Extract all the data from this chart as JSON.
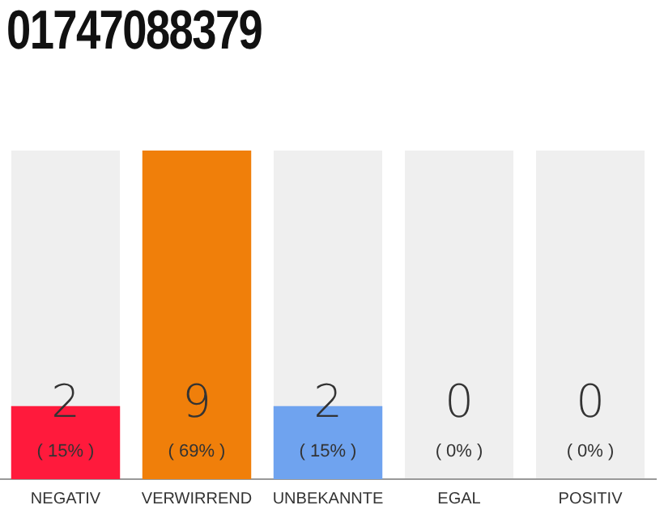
{
  "chart_data": {
    "type": "bar",
    "title": "01747088379",
    "categories": [
      "NEGATIV",
      "VERWIRREND",
      "UNBEKANNTE",
      "EGAL",
      "POSITIV"
    ],
    "values": [
      2,
      9,
      2,
      0,
      0
    ],
    "colors": [
      "#ff1a3c",
      "#f07f0a",
      "#6fa3ef",
      "#9e9e9e",
      "#9e9e9e"
    ],
    "annotations": [
      "( 15% )",
      "( 69% )",
      "( 15% )",
      "( 0% )",
      "( 0% )"
    ],
    "data_labels": true,
    "tick_labels": "x",
    "grid": false,
    "legend": false
  }
}
